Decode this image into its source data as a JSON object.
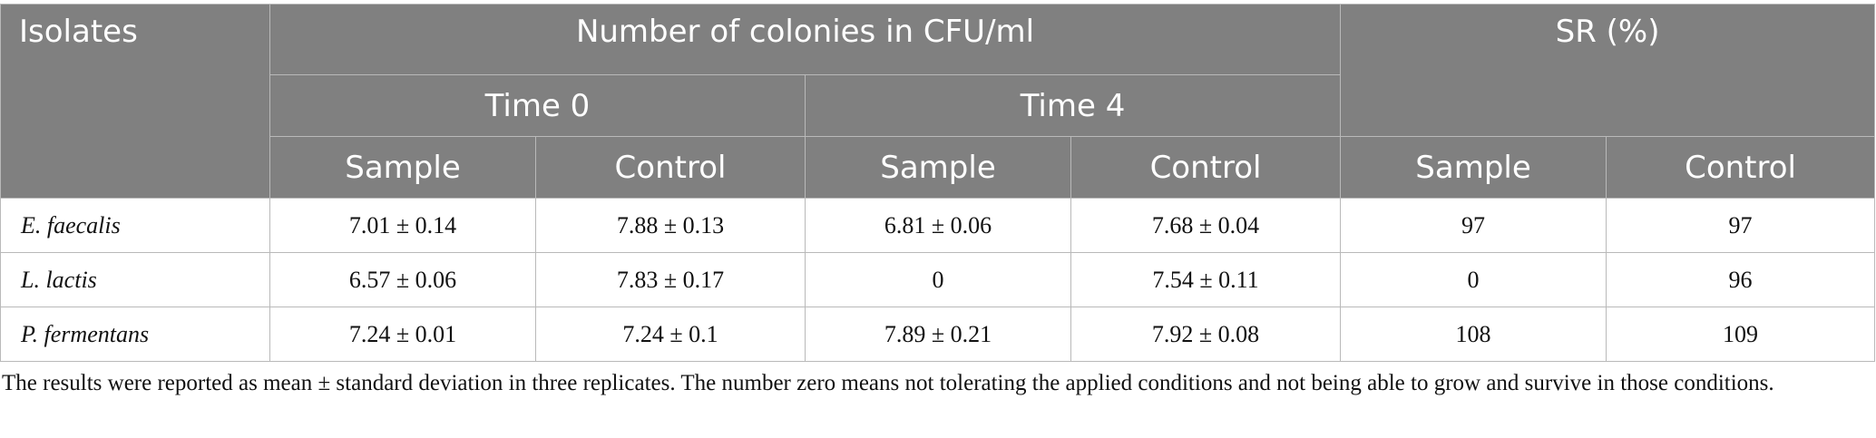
{
  "table": {
    "headers": {
      "isolates": "Isolates",
      "number_of_colonies": "Number of colonies in CFU/ml",
      "sr": "SR (%)",
      "time0": "Time 0",
      "time4": "Time 4",
      "sample": "Sample",
      "control": "Control"
    },
    "rows": [
      {
        "isolate": "E. faecalis",
        "t0_sample": "7.01 ± 0.14",
        "t0_control": "7.88 ± 0.13",
        "t4_sample": "6.81 ± 0.06",
        "t4_control": "7.68 ± 0.04",
        "sr_sample": "97",
        "sr_control": "97"
      },
      {
        "isolate": "L. lactis",
        "t0_sample": "6.57 ± 0.06",
        "t0_control": "7.83 ± 0.17",
        "t4_sample": "0",
        "t4_control": "7.54 ± 0.11",
        "sr_sample": "0",
        "sr_control": "96"
      },
      {
        "isolate": "P. fermentans",
        "t0_sample": "7.24 ± 0.01",
        "t0_control": "7.24 ± 0.1",
        "t4_sample": "7.89 ± 0.21",
        "t4_control": "7.92 ± 0.08",
        "sr_sample": "108",
        "sr_control": "109"
      }
    ]
  },
  "footnote": "The results were reported as mean ± standard deviation in three replicates. The number zero means not tolerating the applied conditions and not being able to grow and survive in those conditions.",
  "colors": {
    "header_bg": "#808080",
    "header_text": "#ffffff",
    "border": "#b9b9b9"
  }
}
